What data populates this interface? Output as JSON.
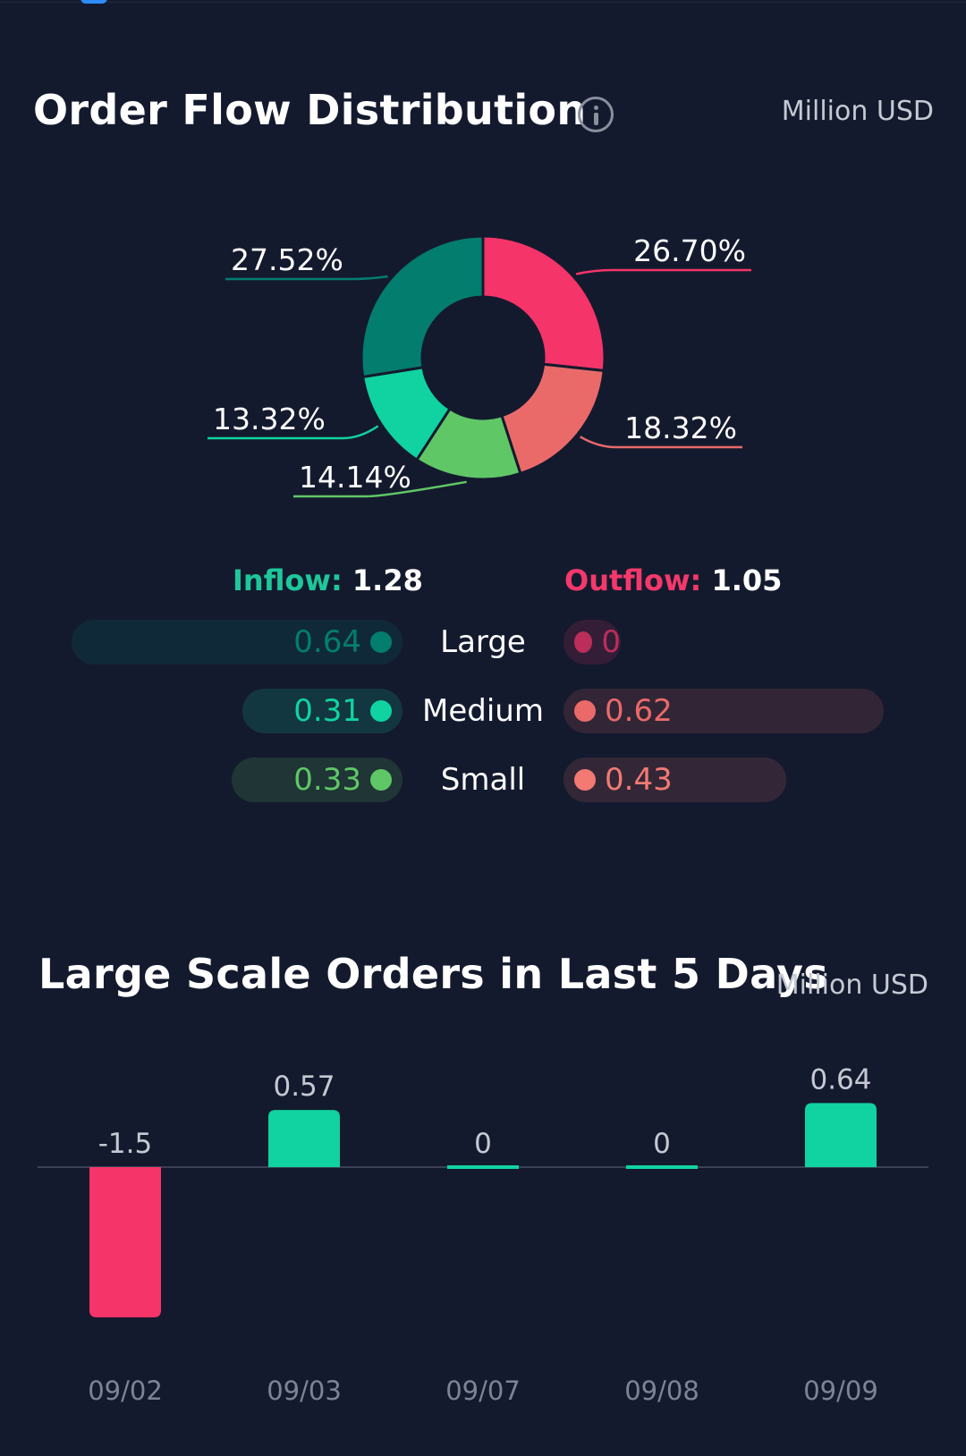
{
  "flow_distribution": {
    "title": "Order Flow Distribution",
    "unit": "Million USD",
    "inflow": {
      "label": "Inflow:",
      "value": "1.28"
    },
    "outflow": {
      "label": "Outflow:",
      "value": "1.05"
    },
    "colors": {
      "inflow_accent": "#1ec79a",
      "outflow_accent": "#f5386b",
      "large_in": "#037d6e",
      "medium_in": "#10d3a1",
      "small_in": "#5fc766",
      "large_out": "#f5346a",
      "medium_out": "#ea6a6a",
      "small_out": "#f27a72"
    },
    "rows": [
      {
        "label": "Large",
        "inflow": 0.64,
        "outflow": 0,
        "inflow_text": "0.64",
        "outflow_text": "0"
      },
      {
        "label": "Medium",
        "inflow": 0.31,
        "outflow": 0.62,
        "inflow_text": "0.31",
        "outflow_text": "0.62"
      },
      {
        "label": "Small",
        "inflow": 0.33,
        "outflow": 0.43,
        "inflow_text": "0.33",
        "outflow_text": "0.43"
      }
    ]
  },
  "chart_data": [
    {
      "type": "pie",
      "title": "Order Flow Distribution",
      "slices": [
        {
          "label": "27.52%",
          "value": 27.52,
          "color": "#037d6e"
        },
        {
          "label": "26.70%",
          "value": 26.7,
          "color": "#f5346a"
        },
        {
          "label": "18.32%",
          "value": 18.32,
          "color": "#ea6a6a"
        },
        {
          "label": "14.14%",
          "value": 14.14,
          "color": "#5fc766"
        },
        {
          "label": "13.32%",
          "value": 13.32,
          "color": "#10d3a1"
        }
      ]
    },
    {
      "type": "bar",
      "title": "Large Scale Orders in Last 5 Days",
      "unit": "Million USD",
      "categories": [
        "09/02",
        "09/03",
        "09/07",
        "09/08",
        "09/09"
      ],
      "values": [
        -1.5,
        0.57,
        0,
        0,
        0.64
      ],
      "value_labels": [
        "-1.5",
        "0.57",
        "0",
        "0",
        "0.64"
      ],
      "positive_color": "#10d3a1",
      "negative_color": "#f5346a"
    }
  ]
}
